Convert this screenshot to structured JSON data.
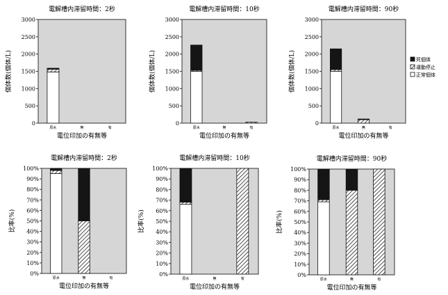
{
  "legend": {
    "items": [
      {
        "label": "死個体",
        "fill": "#151515"
      },
      {
        "label": "運動停止",
        "fill": "hatch"
      },
      {
        "label": "正常個体",
        "fill": "#ffffff"
      }
    ]
  },
  "colors": {
    "plot_bg": "#d6d6d6",
    "dead": "#151515",
    "normal": "#ffffff",
    "hatch_line": "#222222"
  },
  "chart_data": [
    {
      "type": "bar",
      "stacked": true,
      "title": "電解槽内滞留時間：2秒",
      "xlabel": "電位印加の有無等",
      "ylabel": "個体数(個体/L)",
      "categories": [
        "原水",
        "無",
        "有"
      ],
      "ylim": [
        0,
        3000
      ],
      "yticks": [
        0,
        500,
        1000,
        1500,
        2000,
        2500,
        3000
      ],
      "ytick_format": "number",
      "series": [
        {
          "name": "正常個体",
          "values": [
            1480,
            0,
            0
          ]
        },
        {
          "name": "運動停止",
          "values": [
            80,
            0,
            0
          ]
        },
        {
          "name": "死個体",
          "values": [
            30,
            0,
            0
          ]
        }
      ]
    },
    {
      "type": "bar",
      "stacked": true,
      "title": "電解槽内滞留時間：10秒",
      "xlabel": "電位印加の有無等",
      "ylabel": "個体数(個体/L)",
      "categories": [
        "原水",
        "無",
        "有"
      ],
      "ylim": [
        0,
        3000
      ],
      "yticks": [
        0,
        500,
        1000,
        1500,
        2000,
        2500,
        3000
      ],
      "ytick_format": "number",
      "series": [
        {
          "name": "正常個体",
          "values": [
            1500,
            0,
            0
          ]
        },
        {
          "name": "運動停止",
          "values": [
            30,
            0,
            30
          ]
        },
        {
          "name": "死個体",
          "values": [
            730,
            0,
            0
          ]
        }
      ]
    },
    {
      "type": "bar",
      "stacked": true,
      "title": "電解槽内滞留時間：90秒",
      "xlabel": "電位印加の有無等",
      "ylabel": "個体数(個体/L)",
      "categories": [
        "原水",
        "無",
        "有"
      ],
      "ylim": [
        0,
        3000
      ],
      "yticks": [
        0,
        500,
        1000,
        1500,
        2000,
        2500,
        3000
      ],
      "ytick_format": "number",
      "series": [
        {
          "name": "正常個体",
          "values": [
            1500,
            0,
            0
          ]
        },
        {
          "name": "運動停止",
          "values": [
            50,
            100,
            0
          ]
        },
        {
          "name": "死個体",
          "values": [
            600,
            20,
            0
          ]
        }
      ]
    },
    {
      "type": "bar",
      "stacked": true,
      "title": "電解槽内滞留時間：2秒",
      "xlabel": "電位印加の有無等",
      "ylabel": "比率(%)",
      "categories": [
        "原水",
        "無",
        "有"
      ],
      "ylim": [
        0,
        100
      ],
      "yticks": [
        0,
        10,
        20,
        30,
        40,
        50,
        60,
        70,
        80,
        90,
        100
      ],
      "ytick_format": "percent",
      "series": [
        {
          "name": "正常個体",
          "values": [
            95,
            0,
            0
          ]
        },
        {
          "name": "運動停止",
          "values": [
            3,
            50,
            0
          ]
        },
        {
          "name": "死個体",
          "values": [
            2,
            50,
            0
          ]
        }
      ]
    },
    {
      "type": "bar",
      "stacked": true,
      "title": "電解槽内滞留時間：10秒",
      "xlabel": "電位印加の有無等",
      "ylabel": "比率(%)",
      "categories": [
        "原水",
        "無",
        "有"
      ],
      "ylim": [
        0,
        100
      ],
      "yticks": [
        0,
        10,
        20,
        30,
        40,
        50,
        60,
        70,
        80,
        90,
        100
      ],
      "ytick_format": "percent",
      "series": [
        {
          "name": "正常個体",
          "values": [
            66,
            0,
            0
          ]
        },
        {
          "name": "運動停止",
          "values": [
            2,
            0,
            100
          ]
        },
        {
          "name": "死個体",
          "values": [
            32,
            0,
            0
          ]
        }
      ]
    },
    {
      "type": "bar",
      "stacked": true,
      "title": "電解槽内滞留時間：90秒",
      "xlabel": "電位印加の有無等",
      "ylabel": "比率(%)",
      "categories": [
        "原水",
        "無",
        "有"
      ],
      "ylim": [
        0,
        100
      ],
      "yticks": [
        0,
        10,
        20,
        30,
        40,
        50,
        60,
        70,
        80,
        90,
        100
      ],
      "ytick_format": "percent",
      "series": [
        {
          "name": "正常個体",
          "values": [
            69,
            0,
            0
          ]
        },
        {
          "name": "運動停止",
          "values": [
            2,
            80,
            100
          ]
        },
        {
          "name": "死個体",
          "values": [
            29,
            20,
            0
          ]
        }
      ]
    }
  ]
}
